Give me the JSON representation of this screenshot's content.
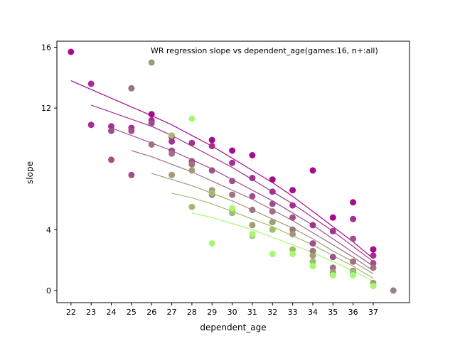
{
  "chart_data": {
    "type": "scatter",
    "title": "WR regression slope vs dependent_age(games:16, n+:all)",
    "xlabel": "dependent_age",
    "ylabel": "slope",
    "xlim": [
      21.3,
      38.8
    ],
    "ylim": [
      -0.8,
      16.4
    ],
    "x_ticks": [
      "22",
      "23",
      "24",
      "25",
      "26",
      "27",
      "28",
      "29",
      "30",
      "31",
      "32",
      "33",
      "34",
      "35",
      "36",
      "37"
    ],
    "y_ticks": [
      "0",
      "4",
      "12",
      "16"
    ],
    "grid": false,
    "legend": "none",
    "series": [
      {
        "color": "#a60b8c",
        "points": [
          [
            22,
            15.7
          ],
          [
            26,
            11.6
          ],
          [
            27,
            10.1
          ],
          [
            29,
            9.9
          ],
          [
            30,
            9.2
          ],
          [
            31,
            8.9
          ],
          [
            32,
            7.3
          ],
          [
            33,
            6.6
          ],
          [
            34,
            7.9
          ],
          [
            35,
            4.8
          ],
          [
            36,
            5.8
          ],
          [
            37,
            2.7
          ]
        ],
        "fit": [
          [
            22,
            13.8
          ],
          [
            26,
            11.5
          ],
          [
            27,
            10.9
          ],
          [
            28,
            10.2
          ],
          [
            29,
            9.5
          ],
          [
            30,
            8.7
          ],
          [
            31,
            7.9
          ],
          [
            32,
            7.1
          ],
          [
            33,
            6.2
          ],
          [
            34,
            5.2
          ],
          [
            35,
            4.2
          ],
          [
            36,
            3.2
          ],
          [
            37,
            2.1
          ]
        ]
      },
      {
        "color": "#a33092",
        "points": [
          [
            23,
            13.6
          ],
          [
            23,
            10.9
          ],
          [
            24,
            10.8
          ],
          [
            25,
            10.7
          ],
          [
            26,
            11.2
          ],
          [
            27,
            9.8
          ],
          [
            28,
            9.7
          ],
          [
            29,
            9.5
          ],
          [
            30,
            8.4
          ],
          [
            31,
            7.4
          ],
          [
            32,
            6.5
          ],
          [
            33,
            5.6
          ],
          [
            34,
            4.3
          ],
          [
            35,
            3.9
          ],
          [
            36,
            4.7
          ],
          [
            37,
            2.3
          ]
        ],
        "fit": [
          [
            23,
            12.2
          ],
          [
            26,
            10.8
          ],
          [
            27,
            10.2
          ],
          [
            28,
            9.5
          ],
          [
            29,
            8.8
          ],
          [
            30,
            8.1
          ],
          [
            31,
            7.3
          ],
          [
            32,
            6.5
          ],
          [
            33,
            5.7
          ],
          [
            34,
            4.8
          ],
          [
            35,
            3.9
          ],
          [
            36,
            2.9
          ],
          [
            37,
            1.9
          ]
        ]
      },
      {
        "color": "#a04e8e",
        "points": [
          [
            24,
            10.5
          ],
          [
            24,
            8.6
          ],
          [
            25,
            10.5
          ],
          [
            25,
            7.6
          ],
          [
            26,
            11.0
          ],
          [
            27,
            9.2
          ],
          [
            28,
            8.5
          ],
          [
            29,
            7.9
          ],
          [
            30,
            7.2
          ],
          [
            31,
            6.2
          ],
          [
            32,
            5.7
          ],
          [
            33,
            4.8
          ],
          [
            34,
            3.1
          ],
          [
            35,
            2.2
          ],
          [
            36,
            3.4
          ],
          [
            37,
            1.8
          ]
        ],
        "fit": [
          [
            24,
            10.7
          ],
          [
            26,
            9.7
          ],
          [
            27,
            9.2
          ],
          [
            28,
            8.6
          ],
          [
            29,
            8.0
          ],
          [
            30,
            7.3
          ],
          [
            31,
            6.6
          ],
          [
            32,
            5.9
          ],
          [
            33,
            5.1
          ],
          [
            34,
            4.3
          ],
          [
            35,
            3.4
          ],
          [
            36,
            2.5
          ],
          [
            37,
            1.6
          ]
        ]
      },
      {
        "color": "#a0717f",
        "points": [
          [
            25,
            13.3
          ],
          [
            26,
            9.6
          ],
          [
            27,
            9.0
          ],
          [
            28,
            8.3
          ],
          [
            29,
            6.3
          ],
          [
            30,
            6.3
          ],
          [
            31,
            5.3
          ],
          [
            32,
            5.2
          ],
          [
            33,
            4.0
          ],
          [
            34,
            2.6
          ],
          [
            35,
            1.5
          ],
          [
            36,
            1.9
          ],
          [
            37,
            1.5
          ]
        ],
        "fit": [
          [
            25,
            9.2
          ],
          [
            26,
            8.8
          ],
          [
            27,
            8.3
          ],
          [
            28,
            7.8
          ],
          [
            29,
            7.2
          ],
          [
            30,
            6.6
          ],
          [
            31,
            6.0
          ],
          [
            32,
            5.3
          ],
          [
            33,
            4.6
          ],
          [
            34,
            3.8
          ],
          [
            35,
            3.0
          ],
          [
            36,
            2.2
          ],
          [
            37,
            1.3
          ]
        ]
      },
      {
        "color": "#a09c78",
        "points": [
          [
            26,
            15.0
          ],
          [
            27,
            7.6
          ],
          [
            28,
            7.9
          ],
          [
            29,
            6.6
          ],
          [
            30,
            5.3
          ],
          [
            31,
            4.3
          ],
          [
            32,
            4.5
          ],
          [
            33,
            3.7
          ],
          [
            34,
            2.3
          ],
          [
            35,
            1.2
          ],
          [
            36,
            1.3
          ],
          [
            37,
            0.5
          ]
        ],
        "fit": [
          [
            26,
            7.7
          ],
          [
            27,
            7.3
          ],
          [
            28,
            6.9
          ],
          [
            29,
            6.4
          ],
          [
            30,
            5.9
          ],
          [
            31,
            5.3
          ],
          [
            32,
            4.7
          ],
          [
            33,
            4.1
          ],
          [
            34,
            3.4
          ],
          [
            35,
            2.6
          ],
          [
            36,
            1.9
          ],
          [
            37,
            1.1
          ]
        ]
      },
      {
        "color": "#a0bd6e",
        "points": [
          [
            27,
            10.2
          ],
          [
            28,
            5.5
          ],
          [
            29,
            6.4
          ],
          [
            30,
            5.1
          ],
          [
            31,
            3.6
          ],
          [
            32,
            4.0
          ],
          [
            33,
            2.7
          ],
          [
            34,
            1.9
          ],
          [
            35,
            1.0
          ],
          [
            36,
            1.2
          ],
          [
            37,
            0.3
          ]
        ],
        "fit": [
          [
            27,
            6.4
          ],
          [
            28,
            6.1
          ],
          [
            29,
            5.7
          ],
          [
            30,
            5.2
          ],
          [
            31,
            4.7
          ],
          [
            32,
            4.2
          ],
          [
            33,
            3.6
          ],
          [
            34,
            3.0
          ],
          [
            35,
            2.3
          ],
          [
            36,
            1.6
          ],
          [
            37,
            0.8
          ]
        ]
      },
      {
        "color": "#a6f873",
        "points": [
          [
            28,
            11.3
          ],
          [
            29,
            3.1
          ],
          [
            30,
            5.4
          ],
          [
            31,
            3.7
          ],
          [
            32,
            2.4
          ],
          [
            33,
            2.4
          ],
          [
            34,
            1.6
          ],
          [
            35,
            1.0
          ],
          [
            36,
            1.0
          ],
          [
            37,
            0.3
          ]
        ],
        "fit": [
          [
            28,
            5.1
          ],
          [
            29,
            4.8
          ],
          [
            30,
            4.4
          ],
          [
            31,
            4.0
          ],
          [
            32,
            3.5
          ],
          [
            33,
            3.0
          ],
          [
            34,
            2.5
          ],
          [
            35,
            1.9
          ],
          [
            36,
            1.3
          ],
          [
            37,
            0.6
          ]
        ]
      },
      {
        "color": "#9a7f8f",
        "points": [
          [
            38,
            0.0
          ]
        ],
        "fit": []
      }
    ]
  }
}
